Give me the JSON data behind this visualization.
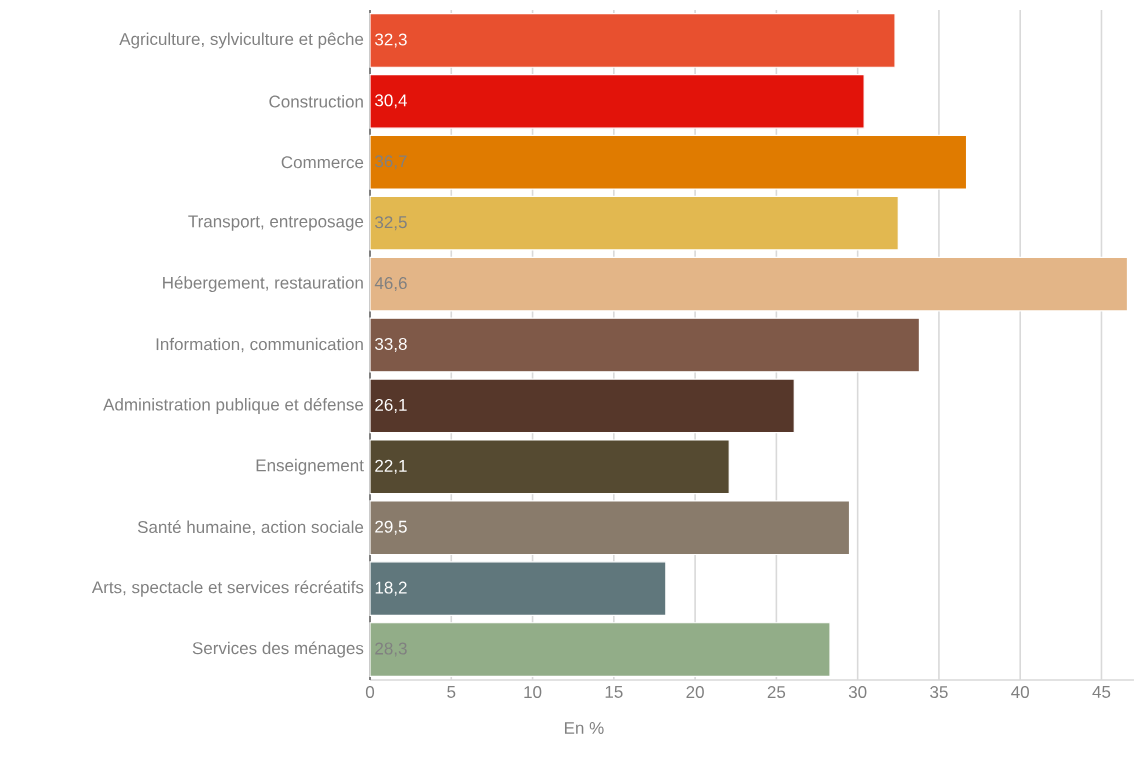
{
  "chart_data": {
    "type": "bar",
    "orientation": "horizontal",
    "xlabel": "En %",
    "categories": [
      "Agriculture, sylviculture et pêche",
      "Construction",
      "Commerce",
      "Transport, entreposage",
      "Hébergement, restauration",
      "Information, communication",
      "Administration publique et défense",
      "Enseignement",
      "Santé humaine, action sociale",
      "Arts, spectacle et services récréatifs",
      "Services des ménages"
    ],
    "values": [
      32.3,
      30.4,
      36.7,
      32.5,
      46.6,
      33.8,
      26.1,
      22.1,
      29.5,
      18.2,
      28.3
    ],
    "value_labels": [
      "32,3",
      "30,4",
      "36,7",
      "32,5",
      "46,6",
      "33,8",
      "26,1",
      "22,1",
      "29,5",
      "18,2",
      "28,3"
    ],
    "colors": [
      "#e8502f",
      "#e2130a",
      "#e07b00",
      "#e2b850",
      "#e3b587",
      "#7f5948",
      "#56372a",
      "#554a31",
      "#897b6b",
      "#60777c",
      "#92ad88"
    ],
    "xlim": [
      0,
      47
    ],
    "xticks": [
      0,
      5,
      10,
      15,
      20,
      25,
      30,
      35,
      40,
      45
    ],
    "grid": "x"
  }
}
